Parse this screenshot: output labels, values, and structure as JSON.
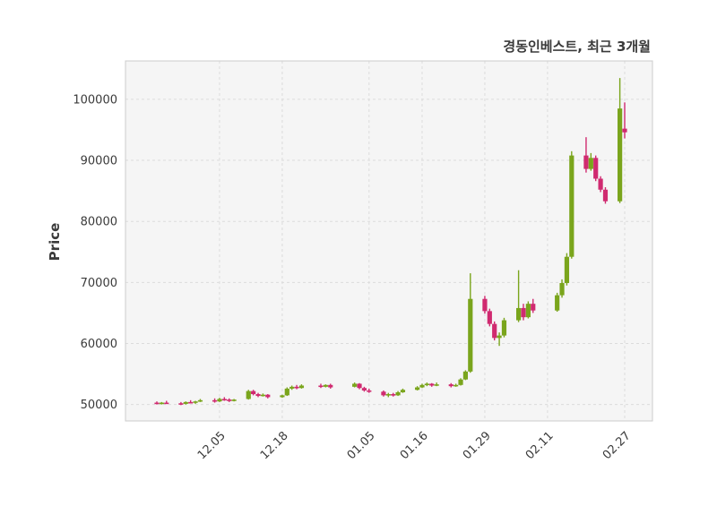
{
  "chart_data": {
    "type": "candlestick",
    "title": "경동인베스트, 최근 3개월",
    "xlabel": "",
    "ylabel": "Price",
    "legend": false,
    "grid": true,
    "grid_style": "dashed",
    "ylim": [
      47300,
      106300
    ],
    "y_ticks": [
      50000,
      60000,
      70000,
      80000,
      90000,
      100000
    ],
    "x_ticks": [
      "12.05",
      "12.18",
      "01.05",
      "01.16",
      "01.29",
      "02.11",
      "02.27"
    ],
    "up_color": "#7aa51c",
    "down_color": "#d02a70",
    "grid_color": "#dcdcdc",
    "plot_bg": "#f5f5f5",
    "spine_color": "#cccccc",
    "text_color": "#3a3a3a",
    "columns": [
      "date",
      "open",
      "high",
      "low",
      "close"
    ],
    "candles": [
      [
        "11.22",
        50300,
        50500,
        50000,
        50100
      ],
      [
        "11.23",
        50100,
        50400,
        50000,
        50300
      ],
      [
        "11.24",
        50300,
        50600,
        50100,
        50200
      ],
      [
        "11.27",
        50200,
        50400,
        49900,
        50100
      ],
      [
        "11.28",
        50100,
        50500,
        50000,
        50400
      ],
      [
        "11.29",
        50400,
        50700,
        50200,
        50300
      ],
      [
        "11.30",
        50300,
        50600,
        50100,
        50500
      ],
      [
        "12.01",
        50500,
        50900,
        50400,
        50700
      ],
      [
        "12.04",
        50700,
        51000,
        50300,
        50500
      ],
      [
        "12.05",
        50500,
        51100,
        50400,
        50900
      ],
      [
        "12.06",
        50900,
        51200,
        50600,
        50800
      ],
      [
        "12.07",
        50800,
        51000,
        50400,
        50600
      ],
      [
        "12.08",
        50600,
        50900,
        50500,
        50800
      ],
      [
        "12.11",
        50900,
        52400,
        50800,
        52200
      ],
      [
        "12.12",
        52200,
        52400,
        51500,
        51700
      ],
      [
        "12.13",
        51700,
        51900,
        51200,
        51400
      ],
      [
        "12.14",
        51400,
        51800,
        51300,
        51600
      ],
      [
        "12.15",
        51600,
        51700,
        51000,
        51200
      ],
      [
        "12.18",
        51200,
        51600,
        51100,
        51500
      ],
      [
        "12.19",
        51500,
        52800,
        51400,
        52600
      ],
      [
        "12.20",
        52600,
        53100,
        52400,
        52900
      ],
      [
        "12.21",
        52900,
        53200,
        52500,
        52700
      ],
      [
        "12.22",
        52700,
        53300,
        52600,
        53100
      ],
      [
        "12.26",
        53100,
        53400,
        52700,
        52900
      ],
      [
        "12.27",
        52900,
        53300,
        52800,
        53200
      ],
      [
        "12.28",
        53200,
        53400,
        52600,
        52800
      ],
      [
        "01.02",
        52900,
        53600,
        52800,
        53400
      ],
      [
        "01.03",
        53400,
        53500,
        52500,
        52700
      ],
      [
        "01.04",
        52700,
        52900,
        52100,
        52300
      ],
      [
        "01.05",
        52300,
        52600,
        51900,
        52100
      ],
      [
        "01.08",
        52100,
        52300,
        51300,
        51500
      ],
      [
        "01.09",
        51500,
        51900,
        51200,
        51700
      ],
      [
        "01.10",
        51700,
        51900,
        51300,
        51500
      ],
      [
        "01.11",
        51500,
        52200,
        51400,
        52000
      ],
      [
        "01.12",
        52000,
        52600,
        51900,
        52400
      ],
      [
        "01.15",
        52400,
        53000,
        52300,
        52800
      ],
      [
        "01.16",
        52800,
        53400,
        52700,
        53200
      ],
      [
        "01.17",
        53200,
        53600,
        53000,
        53400
      ],
      [
        "01.18",
        53400,
        53500,
        52900,
        53100
      ],
      [
        "01.19",
        53100,
        53600,
        53000,
        53300
      ],
      [
        "01.22",
        53300,
        53500,
        52800,
        53000
      ],
      [
        "01.23",
        53000,
        53400,
        52900,
        53200
      ],
      [
        "01.24",
        53200,
        54300,
        53100,
        54100
      ],
      [
        "01.25",
        54100,
        55600,
        54000,
        55400
      ],
      [
        "01.26",
        55400,
        71500,
        55200,
        67300
      ],
      [
        "01.29",
        67300,
        67800,
        64900,
        65300
      ],
      [
        "01.30",
        65300,
        65700,
        62800,
        63200
      ],
      [
        "01.31",
        63200,
        63600,
        60500,
        60900
      ],
      [
        "02.01",
        60900,
        61800,
        59600,
        61300
      ],
      [
        "02.02",
        61300,
        64200,
        61000,
        63800
      ],
      [
        "02.05",
        63800,
        72000,
        63500,
        65800
      ],
      [
        "02.06",
        65800,
        66500,
        63800,
        64300
      ],
      [
        "02.07",
        64300,
        66900,
        64100,
        66500
      ],
      [
        "02.08",
        66500,
        67300,
        65000,
        65400
      ],
      [
        "02.13",
        65400,
        68300,
        65200,
        67900
      ],
      [
        "02.14",
        67900,
        70500,
        67500,
        69900
      ],
      [
        "02.15",
        69900,
        74800,
        69500,
        74200
      ],
      [
        "02.16",
        74200,
        91500,
        73900,
        90800
      ],
      [
        "02.19",
        90800,
        93800,
        88000,
        88600
      ],
      [
        "02.20",
        88600,
        91200,
        88300,
        90400
      ],
      [
        "02.21",
        90400,
        90800,
        86600,
        87000
      ],
      [
        "02.22",
        87000,
        87400,
        84800,
        85200
      ],
      [
        "02.23",
        85200,
        85600,
        82900,
        83300
      ],
      [
        "02.26",
        83300,
        103500,
        83000,
        98500
      ],
      [
        "02.27",
        95200,
        99500,
        93600,
        94600
      ]
    ]
  }
}
